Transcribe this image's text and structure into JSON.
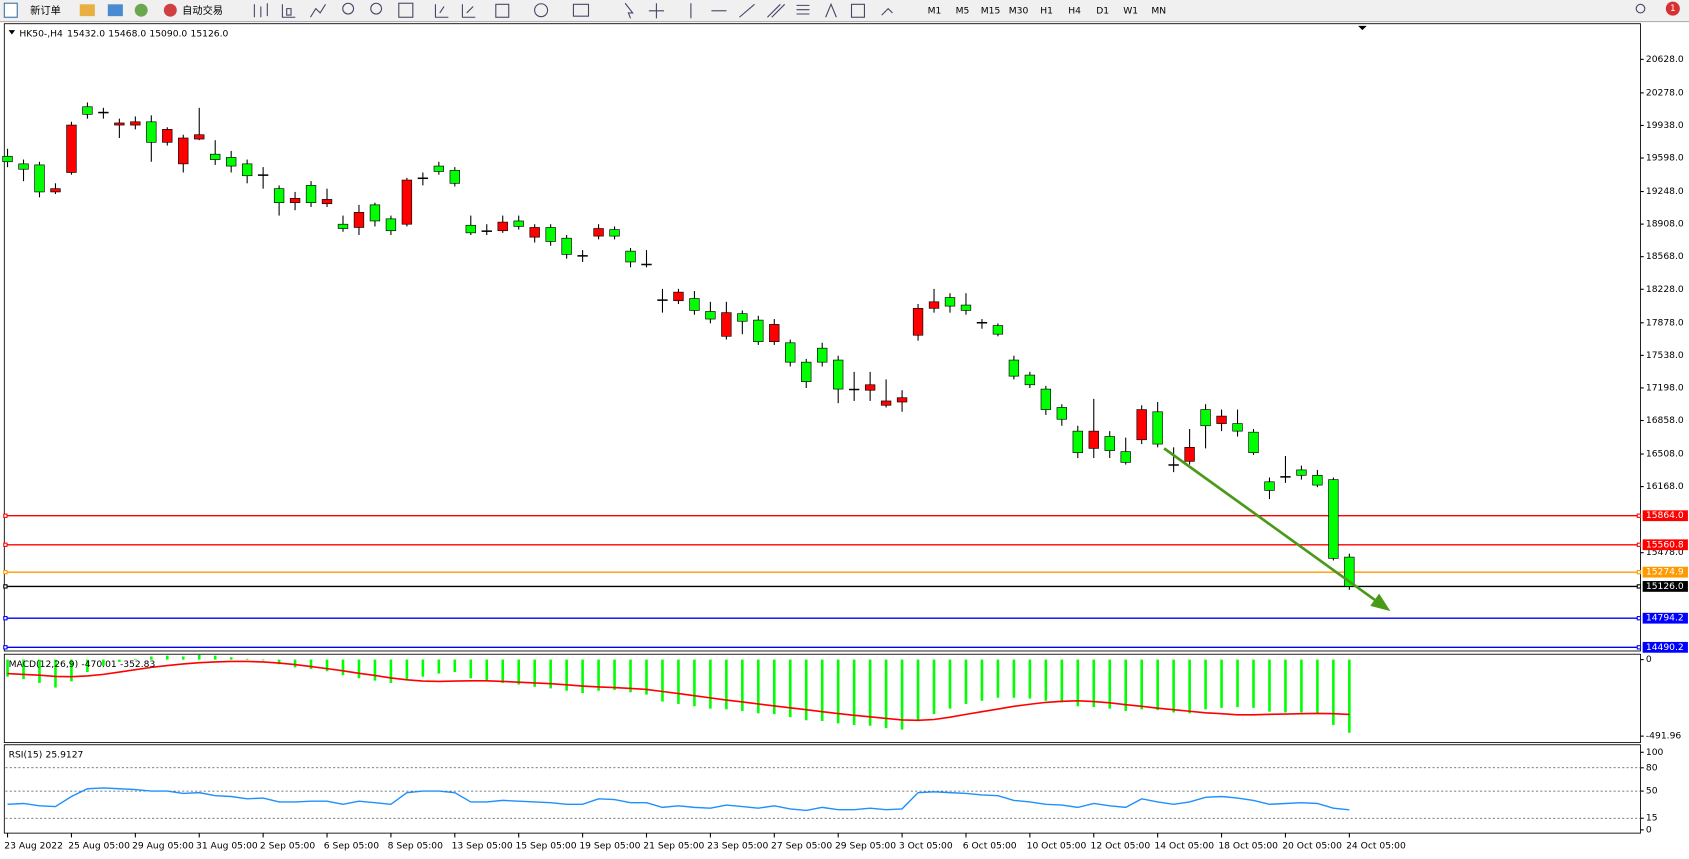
{
  "toolbar": {
    "new_order": "新订单",
    "auto_trade": "自动交易",
    "timeframes": [
      "M1",
      "M5",
      "M15",
      "M30",
      "H1",
      "H4",
      "D1",
      "W1",
      "MN"
    ],
    "notifications": "1"
  },
  "chart_data": [
    {
      "type": "candlestick",
      "title": "HK50-,H4",
      "ohlc_labels": [
        "15432.0",
        "15468.0",
        "15090.0",
        "15126.0"
      ],
      "categories": [
        "23 Aug 2022",
        null,
        null,
        null,
        "25 Aug 05:00",
        null,
        null,
        null,
        "29 Aug 05:00",
        null,
        null,
        null,
        "31 Aug 05:00",
        null,
        null,
        null,
        "2 Sep 05:00",
        null,
        null,
        null,
        "6 Sep 05:00",
        null,
        null,
        null,
        "8 Sep 05:00",
        null,
        null,
        null,
        "13 Sep 05:00",
        null,
        null,
        null,
        "15 Sep 05:00",
        null,
        null,
        null,
        "19 Sep 05:00",
        null,
        null,
        null,
        "21 Sep 05:00",
        null,
        null,
        null,
        "23 Sep 05:00",
        null,
        null,
        null,
        "27 Sep 05:00",
        null,
        null,
        null,
        "29 Sep 05:00",
        null,
        null,
        null,
        "3 Oct 05:00",
        null,
        null,
        null,
        "6 Oct 05:00",
        null,
        null,
        null,
        "10 Oct 05:00",
        null,
        null,
        null,
        "12 Oct 05:00",
        null,
        null,
        null,
        "14 Oct 05:00",
        null,
        null,
        null,
        "18 Oct 05:00",
        null,
        null,
        null,
        "20 Oct 05:00",
        null,
        null,
        null,
        "24 Oct 05:00"
      ],
      "open": [
        19616,
        19537,
        19526,
        19244,
        19447,
        20133,
        20077,
        19942,
        19942,
        19976,
        19762,
        19537,
        19796,
        19638,
        19604,
        19537,
        19424,
        19278,
        19132,
        19312,
        19121,
        18907,
        18873,
        19109,
        18963,
        18907,
        19391,
        19514,
        19469,
        18896,
        18839,
        18839,
        18941,
        18772,
        18873,
        18761,
        18581,
        18783,
        18851,
        18626,
        18491,
        18119,
        18108,
        18131,
        17996,
        17737,
        17973,
        17906,
        17681,
        17669,
        17467,
        17613,
        17489,
        17186,
        17174,
        17017,
        17051,
        17748,
        18029,
        18142,
        18063,
        17883,
        17849,
        17489,
        17332,
        17186,
        16994,
        16747,
        16567,
        16691,
        16533,
        16657,
        16949,
        16398,
        16432,
        16972,
        16826,
        16826,
        16736,
        16218,
        16274,
        16342,
        16286,
        16241,
        15432
      ],
      "high": [
        19694,
        19582,
        19559,
        19334,
        19976,
        20178,
        20122,
        20009,
        20032,
        20043,
        19919,
        19841,
        20122,
        19784,
        19672,
        19582,
        19503,
        19312,
        19244,
        19357,
        19278,
        18997,
        19109,
        19132,
        18997,
        19391,
        19447,
        19559,
        19503,
        18997,
        18907,
        18997,
        18997,
        18907,
        18907,
        18794,
        18637,
        18907,
        18884,
        18659,
        18637,
        18232,
        18232,
        18209,
        18097,
        18097,
        18007,
        17951,
        17917,
        17703,
        17501,
        17669,
        17534,
        17366,
        17366,
        17287,
        17174,
        18074,
        18232,
        18187,
        18187,
        17917,
        17872,
        17534,
        17366,
        17219,
        17028,
        16803,
        17084,
        16747,
        16679,
        17017,
        17051,
        16578,
        16769,
        17028,
        16972,
        16972,
        16769,
        16263,
        16488,
        16387,
        16342,
        16263,
        15468
      ],
      "low": [
        19503,
        19357,
        19188,
        19222,
        19424,
        20009,
        20009,
        19807,
        19897,
        19559,
        19728,
        19447,
        19784,
        19526,
        19447,
        19334,
        19278,
        18997,
        19053,
        19087,
        19087,
        18828,
        18794,
        18884,
        18794,
        18884,
        19312,
        19424,
        19301,
        18794,
        18794,
        18817,
        18851,
        18716,
        18682,
        18547,
        18513,
        18749,
        18749,
        18457,
        18457,
        17984,
        18074,
        17962,
        17872,
        17703,
        17759,
        17647,
        17647,
        17422,
        17197,
        17422,
        17039,
        17062,
        17062,
        16994,
        16949,
        17692,
        17984,
        17984,
        17962,
        17816,
        17737,
        17287,
        17197,
        16916,
        16803,
        16466,
        16466,
        16466,
        16398,
        16612,
        16578,
        16319,
        16398,
        16567,
        16747,
        16691,
        16499,
        16038,
        16207,
        16241,
        16162,
        15397,
        15090
      ],
      "close": [
        19559,
        19481,
        19244,
        19278,
        19942,
        20054,
        20077,
        19964,
        19976,
        19762,
        19897,
        19807,
        19841,
        19582,
        19514,
        19413,
        19424,
        19132,
        19177,
        19132,
        19166,
        18862,
        19031,
        18941,
        18839,
        19368,
        19391,
        19458,
        19334,
        18817,
        18839,
        18929,
        18884,
        18873,
        18727,
        18592,
        18581,
        18862,
        18783,
        18513,
        18491,
        18119,
        18198,
        18007,
        17917,
        17984,
        17894,
        17681,
        17861,
        17467,
        17264,
        17467,
        17186,
        17186,
        17231,
        17062,
        17096,
        18029,
        18097,
        18052,
        18007,
        17883,
        17759,
        17321,
        17231,
        16972,
        16871,
        16522,
        16747,
        16544,
        16421,
        16972,
        16612,
        16398,
        16578,
        16803,
        16904,
        16747,
        16522,
        16128,
        16274,
        16286,
        16184,
        15419,
        15126
      ],
      "up_color": "#ff0000",
      "down_color": "#00ff00",
      "ylim": [
        14452,
        21000
      ],
      "yticks": [
        {
          "value": 20628,
          "label": "20628.0"
        },
        {
          "value": 20278,
          "label": "20278.0"
        },
        {
          "value": 19938,
          "label": "19938.0"
        },
        {
          "value": 19598,
          "label": "19598.0"
        },
        {
          "value": 19248,
          "label": "19248.0"
        },
        {
          "value": 18908,
          "label": "18908.0"
        },
        {
          "value": 18568,
          "label": "18568.0"
        },
        {
          "value": 18228,
          "label": "18228.0"
        },
        {
          "value": 17878,
          "label": "17878.0"
        },
        {
          "value": 17538,
          "label": "17538.0"
        },
        {
          "value": 17198,
          "label": "17198.0"
        },
        {
          "value": 16858,
          "label": "16858.0"
        },
        {
          "value": 16508,
          "label": "16508.0"
        },
        {
          "value": 16168,
          "label": "16168.0"
        },
        {
          "value": 15478,
          "label": "15478.0"
        }
      ],
      "levels": [
        {
          "value": 15864,
          "label": "15864.0",
          "color": "#ff0000"
        },
        {
          "value": 15560.8,
          "label": "15560.8",
          "color": "#ff0000"
        },
        {
          "value": 15274.9,
          "label": "15274.9",
          "color": "#ff9900"
        },
        {
          "value": 15126,
          "label": "15126.0",
          "color": "#000000"
        },
        {
          "value": 14794.2,
          "label": "14794.2",
          "color": "#0000ff"
        },
        {
          "value": 14490.2,
          "label": "14490.2",
          "color": "#0000ff"
        }
      ]
    },
    {
      "type": "macd",
      "title": "MACD(12,26,9)",
      "series": [
        {
          "color": "#00ff00",
          "values": [
            -110,
            -125,
            -150,
            -180,
            -140,
            -80,
            -40,
            -15,
            5,
            20,
            25,
            20,
            30,
            25,
            15,
            5,
            -5,
            -30,
            -50,
            -60,
            -75,
            -100,
            -120,
            -135,
            -150,
            -130,
            -110,
            -90,
            -80,
            -120,
            -140,
            -150,
            -160,
            -175,
            -185,
            -200,
            -215,
            -200,
            -195,
            -210,
            -225,
            -270,
            -285,
            -300,
            -315,
            -320,
            -330,
            -345,
            -350,
            -370,
            -390,
            -395,
            -410,
            -420,
            -425,
            -440,
            -450,
            -395,
            -350,
            -315,
            -285,
            -265,
            -245,
            -245,
            -250,
            -265,
            -275,
            -300,
            -305,
            -315,
            -330,
            -320,
            -325,
            -340,
            -345,
            -320,
            -310,
            -305,
            -310,
            -335,
            -340,
            -340,
            -345,
            -420,
            -470.01
          ]
        },
        {
          "color": "#ff0000",
          "values": [
            -90,
            -95,
            -100,
            -108,
            -110,
            -105,
            -95,
            -80,
            -65,
            -50,
            -38,
            -28,
            -20,
            -15,
            -12,
            -12,
            -15,
            -22,
            -32,
            -45,
            -58,
            -72,
            -88,
            -102,
            -118,
            -130,
            -138,
            -140,
            -138,
            -136,
            -136,
            -140,
            -145,
            -150,
            -155,
            -162,
            -170,
            -176,
            -180,
            -185,
            -192,
            -205,
            -218,
            -232,
            -246,
            -260,
            -272,
            -285,
            -298,
            -310,
            -322,
            -335,
            -347,
            -358,
            -368,
            -378,
            -388,
            -390,
            -385,
            -370,
            -352,
            -335,
            -318,
            -300,
            -287,
            -275,
            -268,
            -265,
            -270,
            -278,
            -290,
            -300,
            -312,
            -322,
            -332,
            -342,
            -348,
            -355,
            -355,
            -352,
            -350,
            -348,
            -346,
            -348,
            -352.83
          ]
        }
      ],
      "ylim": [
        -533.5,
        34.6
      ],
      "yticks": [
        0,
        -491.96
      ]
    },
    {
      "type": "line",
      "title": "RSI(15)",
      "series": [
        {
          "color": "#1e90ff",
          "values": [
            33,
            34,
            31,
            30,
            43,
            53,
            54,
            53,
            52,
            50,
            50,
            47,
            48,
            44,
            43,
            40,
            41,
            36,
            36,
            37,
            37,
            33,
            37,
            35,
            33,
            48,
            50,
            50,
            48,
            36,
            36,
            38,
            37,
            36,
            35,
            33,
            33,
            40,
            39,
            35,
            35,
            29,
            31,
            29,
            28,
            32,
            30,
            28,
            31,
            27,
            25,
            29,
            26,
            26,
            28,
            26,
            27,
            48,
            49,
            48,
            47,
            45,
            44,
            38,
            36,
            33,
            32,
            29,
            34,
            31,
            29,
            40,
            36,
            33,
            36,
            42,
            43,
            41,
            38,
            33,
            34,
            35,
            34,
            28,
            25.9127
          ]
        }
      ],
      "ylim": [
        -4.2,
        109.7
      ],
      "yticks": [
        100,
        80,
        50,
        15,
        0
      ],
      "levels": [
        80,
        50,
        15
      ]
    }
  ]
}
